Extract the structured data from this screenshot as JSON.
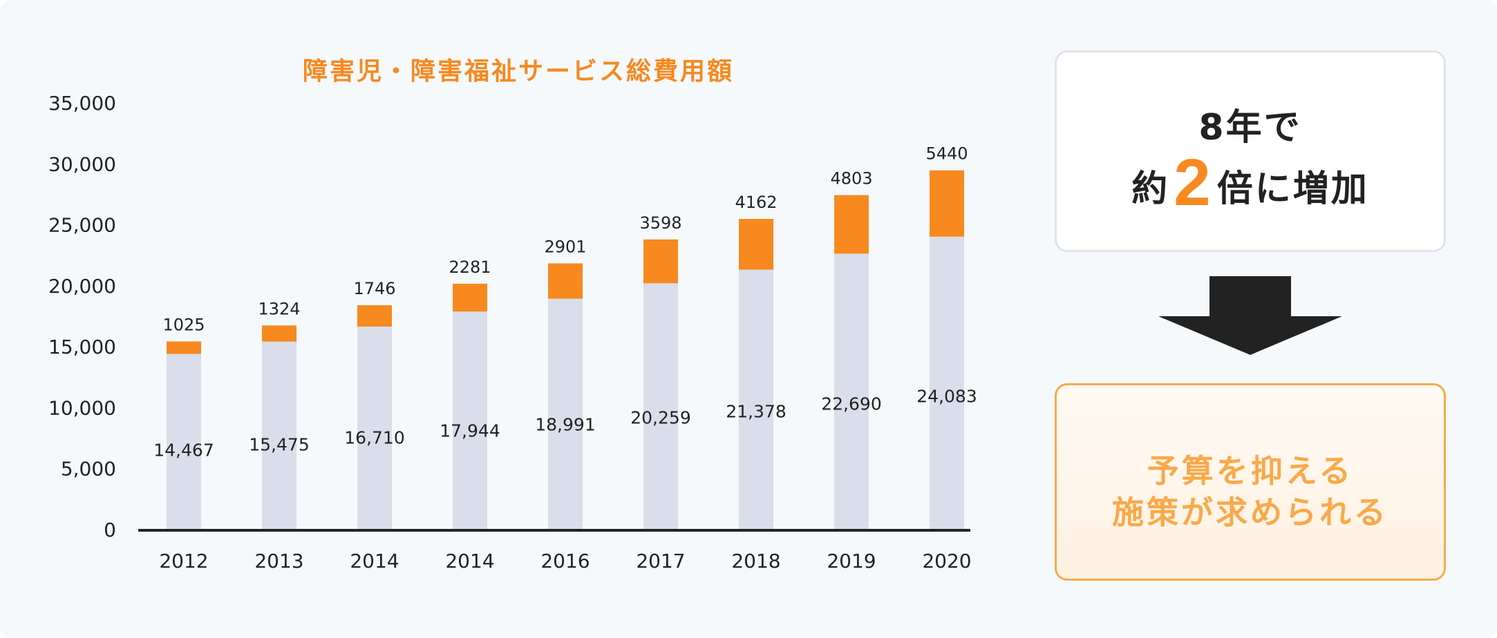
{
  "chart_data": {
    "type": "bar",
    "stacked": true,
    "title": "障害児・障害福祉サービス総費用額",
    "categories": [
      "2012",
      "2013",
      "2014",
      "2014",
      "2016",
      "2017",
      "2018",
      "2019",
      "2020"
    ],
    "series": [
      {
        "values": [
          14467,
          15475,
          16710,
          17944,
          18991,
          20259,
          21378,
          22690,
          24083
        ],
        "color": "#d9deea",
        "labels": [
          "14,467",
          "15,475",
          "16,710",
          "17,944",
          "18,991",
          "20,259",
          "21,378",
          "22,690",
          "24,083"
        ]
      },
      {
        "values": [
          1025,
          1324,
          1746,
          2281,
          2901,
          3598,
          4162,
          4803,
          5440
        ],
        "color": "#f7891f",
        "labels": [
          "1025",
          "1324",
          "1746",
          "2281",
          "2901",
          "3598",
          "4162",
          "4803",
          "5440"
        ]
      }
    ],
    "ylim": [
      0,
      35000
    ],
    "yticks": [
      0,
      5000,
      10000,
      15000,
      20000,
      25000,
      30000,
      35000
    ],
    "ytick_labels": [
      "0",
      "5,000",
      "10,000",
      "15,000",
      "20,000",
      "25,000",
      "30,000",
      "35,000"
    ],
    "grid": false,
    "xlabel": "",
    "ylabel": ""
  },
  "callout": {
    "line1": "8年で",
    "line2_prefix": "約",
    "line2_number": "2",
    "line2_suffix": "倍に増加"
  },
  "conclusion": {
    "line1": "予算を抑える",
    "line2": "施策が求められる"
  },
  "colors": {
    "accent": "#f7891f",
    "base_bar": "#d9deea",
    "text": "#222222",
    "arrow": "#222222"
  }
}
